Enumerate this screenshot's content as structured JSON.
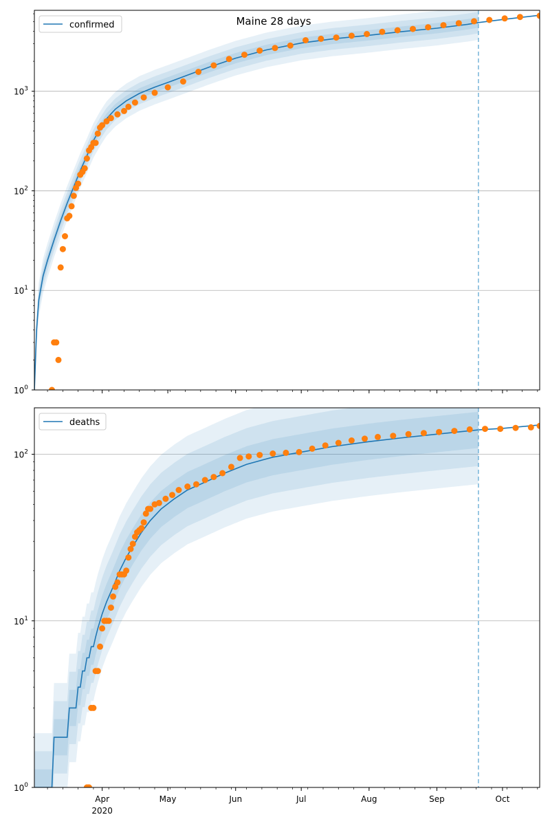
{
  "title": "Maine 28 days",
  "colors": {
    "model_line": "#1f77b4",
    "observed_points": "#ff7f0e",
    "band": "#1f77b4",
    "grid": "#b0b0b0",
    "cutoff_line": "#6baed6"
  },
  "x_axis": {
    "range": [
      "2020-03-01",
      "2020-10-18"
    ],
    "year_label": "2020",
    "major_ticks": [
      {
        "date": "2020-04-01",
        "label": "Apr"
      },
      {
        "date": "2020-05-01",
        "label": "May"
      },
      {
        "date": "2020-06-01",
        "label": "Jun"
      },
      {
        "date": "2020-07-01",
        "label": "Jul"
      },
      {
        "date": "2020-08-01",
        "label": "Aug"
      },
      {
        "date": "2020-09-01",
        "label": "Sep"
      },
      {
        "date": "2020-10-01",
        "label": "Oct"
      }
    ],
    "forecast_cutoff_date": "2020-09-20"
  },
  "chart_data": [
    {
      "type": "scatter",
      "name": "confirmed",
      "legend": "confirmed",
      "legend_position": "upper left",
      "y_scale": "log",
      "ylim": [
        1,
        6500
      ],
      "y_ticks": [
        {
          "value": 1,
          "base": "10",
          "exp": "0"
        },
        {
          "value": 10,
          "base": "10",
          "exp": "1"
        },
        {
          "value": 100,
          "base": "10",
          "exp": "2"
        },
        {
          "value": 1000,
          "base": "10",
          "exp": "3"
        }
      ],
      "grid": "horizontal",
      "observed": [
        [
          "2020-03-09",
          1
        ],
        [
          "2020-03-10",
          3
        ],
        [
          "2020-03-11",
          3
        ],
        [
          "2020-03-12",
          2
        ],
        [
          "2020-03-13",
          17
        ],
        [
          "2020-03-14",
          26
        ],
        [
          "2020-03-15",
          35
        ],
        [
          "2020-03-16",
          53
        ],
        [
          "2020-03-17",
          56
        ],
        [
          "2020-03-18",
          70
        ],
        [
          "2020-03-19",
          89
        ],
        [
          "2020-03-20",
          107
        ],
        [
          "2020-03-21",
          118
        ],
        [
          "2020-03-22",
          145
        ],
        [
          "2020-03-23",
          155
        ],
        [
          "2020-03-24",
          168
        ],
        [
          "2020-03-25",
          211
        ],
        [
          "2020-03-26",
          254
        ],
        [
          "2020-03-27",
          275
        ],
        [
          "2020-03-28",
          303
        ],
        [
          "2020-03-29",
          303
        ],
        [
          "2020-03-30",
          376
        ],
        [
          "2020-03-31",
          432
        ],
        [
          "2020-04-01",
          456
        ],
        [
          "2020-04-03",
          499
        ],
        [
          "2020-04-05",
          537
        ],
        [
          "2020-04-08",
          586
        ],
        [
          "2020-04-11",
          633
        ],
        [
          "2020-04-13",
          698
        ],
        [
          "2020-04-16",
          770
        ],
        [
          "2020-04-20",
          867
        ],
        [
          "2020-04-25",
          965
        ],
        [
          "2020-05-01",
          1095
        ],
        [
          "2020-05-08",
          1254
        ],
        [
          "2020-05-15",
          1565
        ],
        [
          "2020-05-22",
          1819
        ],
        [
          "2020-05-29",
          2109
        ],
        [
          "2020-06-05",
          2325
        ],
        [
          "2020-06-12",
          2559
        ],
        [
          "2020-06-19",
          2718
        ],
        [
          "2020-06-26",
          2878
        ],
        [
          "2020-07-03",
          3253
        ],
        [
          "2020-07-10",
          3366
        ],
        [
          "2020-07-17",
          3462
        ],
        [
          "2020-07-24",
          3608
        ],
        [
          "2020-07-31",
          3755
        ],
        [
          "2020-08-07",
          3950
        ],
        [
          "2020-08-14",
          4095
        ],
        [
          "2020-08-21",
          4225
        ],
        [
          "2020-08-28",
          4392
        ],
        [
          "2020-09-04",
          4611
        ],
        [
          "2020-09-11",
          4828
        ],
        [
          "2020-09-18",
          5045
        ],
        [
          "2020-09-25",
          5200
        ],
        [
          "2020-10-02",
          5391
        ],
        [
          "2020-10-09",
          5573
        ],
        [
          "2020-10-18",
          5737
        ]
      ],
      "model": [
        [
          "2020-03-01",
          1
        ],
        [
          "2020-03-02",
          4
        ],
        [
          "2020-03-03",
          8
        ],
        [
          "2020-03-05",
          14
        ],
        [
          "2020-03-07",
          20
        ],
        [
          "2020-03-10",
          32
        ],
        [
          "2020-03-13",
          50
        ],
        [
          "2020-03-16",
          75
        ],
        [
          "2020-03-19",
          110
        ],
        [
          "2020-03-22",
          160
        ],
        [
          "2020-03-25",
          225
        ],
        [
          "2020-03-28",
          320
        ],
        [
          "2020-03-31",
          420
        ],
        [
          "2020-04-03",
          530
        ],
        [
          "2020-04-07",
          660
        ],
        [
          "2020-04-12",
          800
        ],
        [
          "2020-04-18",
          950
        ],
        [
          "2020-04-25",
          1100
        ],
        [
          "2020-05-02",
          1250
        ],
        [
          "2020-05-10",
          1450
        ],
        [
          "2020-05-20",
          1750
        ],
        [
          "2020-06-01",
          2150
        ],
        [
          "2020-06-15",
          2600
        ],
        [
          "2020-07-01",
          3050
        ],
        [
          "2020-07-15",
          3350
        ],
        [
          "2020-08-01",
          3650
        ],
        [
          "2020-08-15",
          3950
        ],
        [
          "2020-09-01",
          4300
        ],
        [
          "2020-09-15",
          4700
        ],
        [
          "2020-09-20",
          4900
        ],
        [
          "2020-10-01",
          5250
        ],
        [
          "2020-10-18",
          5800
        ]
      ],
      "band_widths": [
        0.12,
        0.25,
        0.4
      ]
    },
    {
      "type": "scatter",
      "name": "deaths",
      "legend": "deaths",
      "legend_position": "upper left",
      "y_scale": "log",
      "ylim": [
        1,
        190
      ],
      "y_ticks": [
        {
          "value": 1,
          "base": "10",
          "exp": "0"
        },
        {
          "value": 10,
          "base": "10",
          "exp": "1"
        },
        {
          "value": 100,
          "base": "10",
          "exp": "2"
        }
      ],
      "grid": "horizontal",
      "observed": [
        [
          "2020-03-25",
          1
        ],
        [
          "2020-03-26",
          1
        ],
        [
          "2020-03-27",
          3
        ],
        [
          "2020-03-28",
          3
        ],
        [
          "2020-03-29",
          5
        ],
        [
          "2020-03-30",
          5
        ],
        [
          "2020-03-31",
          7
        ],
        [
          "2020-04-01",
          9
        ],
        [
          "2020-04-02",
          10
        ],
        [
          "2020-04-03",
          10
        ],
        [
          "2020-04-04",
          10
        ],
        [
          "2020-04-05",
          12
        ],
        [
          "2020-04-06",
          14
        ],
        [
          "2020-04-07",
          16
        ],
        [
          "2020-04-08",
          17
        ],
        [
          "2020-04-09",
          19
        ],
        [
          "2020-04-10",
          19
        ],
        [
          "2020-04-11",
          19
        ],
        [
          "2020-04-12",
          20
        ],
        [
          "2020-04-13",
          24
        ],
        [
          "2020-04-14",
          27
        ],
        [
          "2020-04-15",
          29
        ],
        [
          "2020-04-16",
          32
        ],
        [
          "2020-04-17",
          34
        ],
        [
          "2020-04-18",
          35
        ],
        [
          "2020-04-19",
          36
        ],
        [
          "2020-04-20",
          39
        ],
        [
          "2020-04-21",
          44
        ],
        [
          "2020-04-22",
          47
        ],
        [
          "2020-04-23",
          47
        ],
        [
          "2020-04-25",
          50
        ],
        [
          "2020-04-27",
          51
        ],
        [
          "2020-04-30",
          54
        ],
        [
          "2020-05-03",
          57
        ],
        [
          "2020-05-06",
          61
        ],
        [
          "2020-05-10",
          64
        ],
        [
          "2020-05-14",
          66
        ],
        [
          "2020-05-18",
          70
        ],
        [
          "2020-05-22",
          73
        ],
        [
          "2020-05-26",
          77
        ],
        [
          "2020-05-30",
          84
        ],
        [
          "2020-06-03",
          95
        ],
        [
          "2020-06-07",
          97
        ],
        [
          "2020-06-12",
          99
        ],
        [
          "2020-06-18",
          101
        ],
        [
          "2020-06-24",
          102
        ],
        [
          "2020-06-30",
          103
        ],
        [
          "2020-07-06",
          108
        ],
        [
          "2020-07-12",
          113
        ],
        [
          "2020-07-18",
          117
        ],
        [
          "2020-07-24",
          121
        ],
        [
          "2020-07-30",
          124
        ],
        [
          "2020-08-05",
          127
        ],
        [
          "2020-08-12",
          129
        ],
        [
          "2020-08-19",
          132
        ],
        [
          "2020-08-26",
          134
        ],
        [
          "2020-09-02",
          136
        ],
        [
          "2020-09-09",
          138
        ],
        [
          "2020-09-16",
          141
        ],
        [
          "2020-09-23",
          142
        ],
        [
          "2020-09-30",
          142
        ],
        [
          "2020-10-07",
          144
        ],
        [
          "2020-10-14",
          145
        ],
        [
          "2020-10-18",
          148
        ]
      ],
      "model": [
        [
          "2020-03-01",
          1
        ],
        [
          "2020-03-09",
          1
        ],
        [
          "2020-03-10",
          2
        ],
        [
          "2020-03-16",
          2
        ],
        [
          "2020-03-17",
          3
        ],
        [
          "2020-03-20",
          3
        ],
        [
          "2020-03-21",
          4
        ],
        [
          "2020-03-22",
          4
        ],
        [
          "2020-03-23",
          5
        ],
        [
          "2020-03-24",
          5
        ],
        [
          "2020-03-25",
          6
        ],
        [
          "2020-03-26",
          6
        ],
        [
          "2020-03-27",
          7
        ],
        [
          "2020-03-28",
          7
        ],
        [
          "2020-03-29",
          8
        ],
        [
          "2020-03-30",
          9
        ],
        [
          "2020-04-01",
          11
        ],
        [
          "2020-04-03",
          13
        ],
        [
          "2020-04-06",
          16
        ],
        [
          "2020-04-09",
          20
        ],
        [
          "2020-04-12",
          24
        ],
        [
          "2020-04-15",
          28
        ],
        [
          "2020-04-19",
          34
        ],
        [
          "2020-04-23",
          40
        ],
        [
          "2020-04-28",
          47
        ],
        [
          "2020-05-04",
          54
        ],
        [
          "2020-05-10",
          61
        ],
        [
          "2020-05-18",
          68
        ],
        [
          "2020-05-27",
          77
        ],
        [
          "2020-06-06",
          87
        ],
        [
          "2020-06-18",
          96
        ],
        [
          "2020-07-01",
          103
        ],
        [
          "2020-07-15",
          111
        ],
        [
          "2020-08-01",
          119
        ],
        [
          "2020-08-15",
          125
        ],
        [
          "2020-09-01",
          132
        ],
        [
          "2020-09-20",
          140
        ],
        [
          "2020-10-01",
          143
        ],
        [
          "2020-10-18",
          150
        ]
      ],
      "band_widths": [
        0.25,
        0.5,
        0.75
      ]
    }
  ]
}
